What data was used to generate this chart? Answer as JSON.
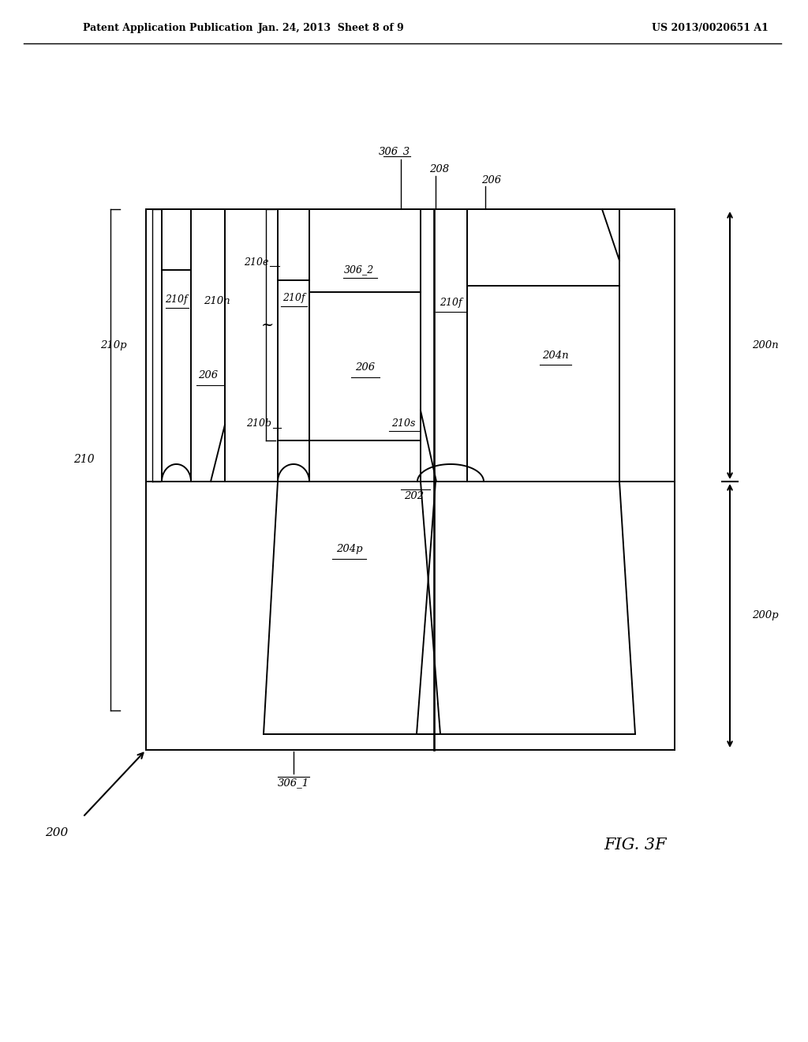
{
  "bg_color": "#ffffff",
  "header_left": "Patent Application Publication",
  "header_mid": "Jan. 24, 2013  Sheet 8 of 9",
  "header_right": "US 2013/0020651 A1",
  "fig_label": "FIG. 3F"
}
